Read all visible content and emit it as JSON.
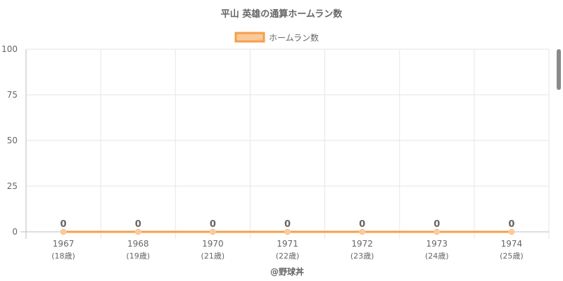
{
  "chart_data": {
    "type": "line",
    "title": "平山 英雄の通算ホームラン数",
    "categories": [
      "1967",
      "1968",
      "1970",
      "1971",
      "1972",
      "1973",
      "1974"
    ],
    "category_sublabels": [
      "(18歳)",
      "(19歳)",
      "(21歳)",
      "(22歳)",
      "(23歳)",
      "(24歳)",
      "(25歳)"
    ],
    "series": [
      {
        "name": "ホームラン数",
        "values": [
          0,
          0,
          0,
          0,
          0,
          0,
          0
        ],
        "color": "#f5a04a",
        "fill": "#fbc99a"
      }
    ],
    "data_labels": [
      "0",
      "0",
      "0",
      "0",
      "0",
      "0",
      "0"
    ],
    "ylim": [
      0,
      100
    ],
    "yticks": [
      0,
      25,
      50,
      75,
      100
    ],
    "ytick_labels": [
      "0",
      "25",
      "50",
      "75",
      "100"
    ],
    "grid": true,
    "legend_position": "top-center",
    "credit": "@野球丼"
  }
}
